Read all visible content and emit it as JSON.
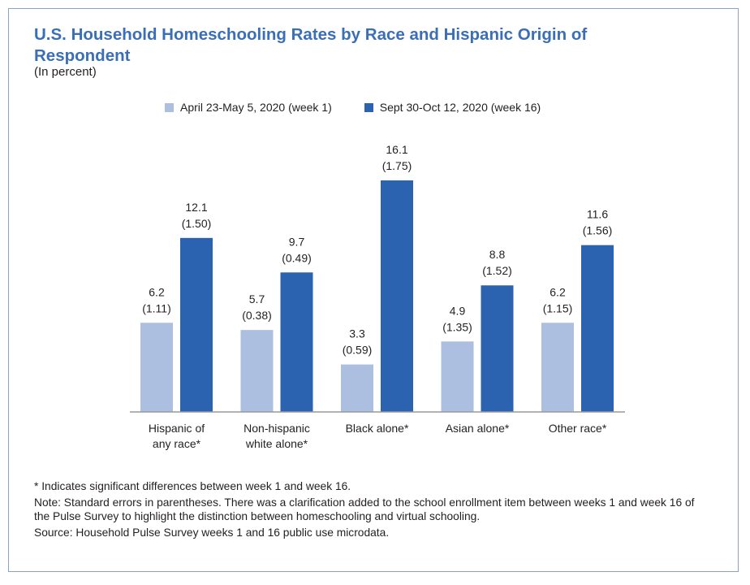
{
  "colors": {
    "week1": "#adbfe0",
    "week16": "#2b63b0",
    "title": "#3a6fb7"
  },
  "chart_data": {
    "type": "bar",
    "title": "U.S. Household Homeschooling Rates by Race and Hispanic Origin of Respondent",
    "subtitle": "(In percent)",
    "categories": [
      [
        "Hispanic of",
        "any race*"
      ],
      [
        "Non-hispanic",
        "white alone*"
      ],
      [
        "Black alone*"
      ],
      [
        "Asian alone*"
      ],
      [
        "Other race*"
      ]
    ],
    "series": [
      {
        "name": "April 23-May 5, 2020 (week 1)",
        "values": [
          6.2,
          5.7,
          3.3,
          4.9,
          6.2
        ],
        "se": [
          "(1.11)",
          "(0.38)",
          "(0.59)",
          "(1.35)",
          "(1.15)"
        ]
      },
      {
        "name": "Sept 30-Oct 12, 2020 (week 16)",
        "values": [
          12.1,
          9.7,
          16.1,
          8.8,
          11.6
        ],
        "se": [
          "(1.50)",
          "(0.49)",
          "(1.75)",
          "(1.52)",
          "(1.56)"
        ]
      }
    ],
    "legend_position": "top"
  },
  "notes": {
    "significance": "* Indicates significant differences between week 1 and week 16.",
    "note": "Note: Standard errors in parentheses. There was a clarification added to the school enrollment item between weeks 1 and week 16 of the Pulse Survey to highlight the distinction between homeschooling and virtual schooling.",
    "source": "Source: Household Pulse Survey weeks 1 and 16 public use microdata."
  }
}
